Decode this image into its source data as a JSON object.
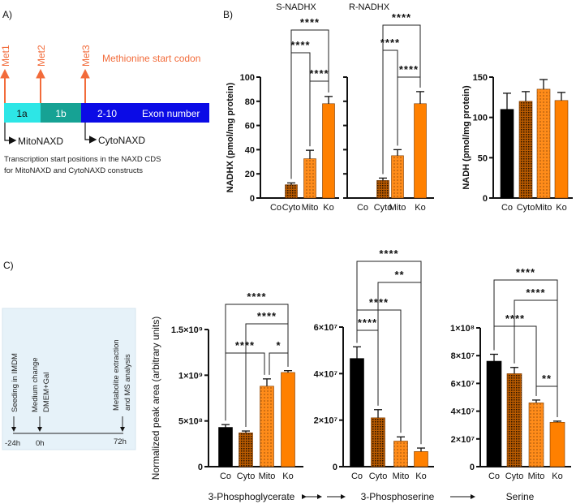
{
  "panel_a": {
    "label": "A)",
    "met_labels": [
      "Met1",
      "Met2",
      "Met3"
    ],
    "legend": "Methionine start codon",
    "exons": [
      "1a",
      "1b",
      "2-10"
    ],
    "exon_caption": "Exon number",
    "starts": [
      "MitoNAXD",
      "CytoNAXD"
    ],
    "caption_line1": "Transcription start positions in the NAXD CDS",
    "caption_line2": "for MitoNAXD and CytoNAXD constructs",
    "colors": {
      "met": "#f26b3a",
      "exon_1a": "#2de6e6",
      "exon_1b": "#16a294",
      "exon_2_10": "#0b0be6"
    }
  },
  "panel_b": {
    "label": "B)"
  },
  "panel_c": {
    "label": "C)",
    "timeline": {
      "events": [
        "Seeding in IMDM",
        "Medium change",
        "DMEM+Gal",
        "Metabolite extraction",
        "and MS analysis"
      ],
      "times": [
        "-24h",
        "0h",
        "72h"
      ]
    },
    "pathway": [
      "3-Phosphoglycerate",
      "3-Phosphoserine",
      "Serine"
    ]
  },
  "colors": {
    "co": "#000000",
    "cyto": "#b85a00",
    "mito": "#ff8c1a",
    "ko": "#ff8000"
  },
  "chart_data": [
    {
      "id": "s_nadhx",
      "type": "bar",
      "title": "S-NADHX",
      "ylabel": "NADHX (pmol/mg protein)",
      "ylim": [
        0,
        100
      ],
      "yticks": [
        0,
        20,
        40,
        60,
        80,
        100
      ],
      "ytick_labels": [
        "0",
        "20",
        "40",
        "60",
        "80",
        "100"
      ],
      "categories": [
        "Co",
        "Cyto",
        "Mito",
        "Ko"
      ],
      "values": [
        0,
        11,
        32.5,
        78
      ],
      "errors": [
        0,
        1.5,
        7,
        6
      ],
      "significance": [
        {
          "pair": [
            1,
            3
          ],
          "label": "****"
        },
        {
          "pair": [
            1,
            2
          ],
          "label": "****"
        },
        {
          "pair": [
            2,
            3
          ],
          "label": "****"
        }
      ]
    },
    {
      "id": "r_nadhx",
      "type": "bar",
      "title": "R-NADHX",
      "ylabel": "",
      "ylim": [
        0,
        100
      ],
      "yticks": [
        0,
        20,
        40,
        60,
        80,
        100
      ],
      "ytick_labels": [],
      "categories": [
        "Co",
        "Cyto",
        "Mito",
        "Ko"
      ],
      "values": [
        0,
        14.5,
        35,
        78
      ],
      "errors": [
        0,
        2,
        5,
        10
      ],
      "significance": [
        {
          "pair": [
            1,
            3
          ],
          "label": "****"
        },
        {
          "pair": [
            1,
            2
          ],
          "label": "****"
        },
        {
          "pair": [
            2,
            3
          ],
          "label": "****"
        }
      ]
    },
    {
      "id": "nadh",
      "type": "bar",
      "title": "",
      "ylabel": "NADH (pmol/mg protein)",
      "ylim": [
        0,
        150
      ],
      "yticks": [
        0,
        50,
        100,
        150
      ],
      "ytick_labels": [
        "0",
        "50",
        "100",
        "150"
      ],
      "categories": [
        "Co",
        "Cyto",
        "Mito",
        "Ko"
      ],
      "values": [
        110,
        120,
        135,
        121
      ],
      "errors": [
        20,
        12,
        12,
        10
      ],
      "significance": []
    },
    {
      "id": "pg",
      "type": "bar",
      "title": "",
      "ylabel": "Normalized peak area (arbitrary units)",
      "ylim": [
        0,
        1500000000
      ],
      "yticks": [
        0,
        500000000,
        1000000000,
        1500000000
      ],
      "ytick_labels": [
        "0",
        "5×10⁸",
        "1×10⁹",
        "1.5×10⁹"
      ],
      "categories": [
        "Co",
        "Cyto",
        "Mito",
        "Ko"
      ],
      "values": [
        430000000,
        370000000,
        880000000,
        1030000000
      ],
      "errors": [
        30000000,
        20000000,
        80000000,
        20000000
      ],
      "significance": [
        {
          "pair": [
            0,
            3
          ],
          "label": "****"
        },
        {
          "pair": [
            1,
            3
          ],
          "label": "****"
        },
        {
          "pair": [
            0,
            2
          ],
          "label": "****"
        },
        {
          "pair": [
            2,
            3
          ],
          "label": "*"
        }
      ]
    },
    {
      "id": "ps",
      "type": "bar",
      "title": "",
      "ylabel": "",
      "ylim": [
        0,
        60000000
      ],
      "yticks": [
        0,
        20000000,
        40000000,
        60000000
      ],
      "ytick_labels": [
        "0",
        "2×10⁷",
        "4×10⁷",
        "6×10⁷"
      ],
      "categories": [
        "Co",
        "Cyto",
        "Mito",
        "Ko"
      ],
      "values": [
        46500000,
        21000000,
        11000000,
        6500000
      ],
      "errors": [
        5000000,
        3500000,
        1800000,
        1500000
      ],
      "significance": [
        {
          "pair": [
            0,
            3
          ],
          "label": "****"
        },
        {
          "pair": [
            1,
            3
          ],
          "label": "**"
        },
        {
          "pair": [
            0,
            2
          ],
          "label": "****"
        },
        {
          "pair": [
            0,
            1
          ],
          "label": "****"
        }
      ]
    },
    {
      "id": "ser",
      "type": "bar",
      "title": "",
      "ylabel": "",
      "ylim": [
        0,
        100000000
      ],
      "yticks": [
        0,
        20000000,
        40000000,
        60000000,
        80000000,
        100000000
      ],
      "ytick_labels": [
        "0",
        "2×10⁷",
        "4×10⁷",
        "6×10⁷",
        "8×10⁷",
        "1×10⁸"
      ],
      "categories": [
        "Co",
        "Cyto",
        "Mito",
        "Ko"
      ],
      "values": [
        76000000,
        67000000,
        46000000,
        32000000
      ],
      "errors": [
        5000000,
        4500000,
        2000000,
        800000
      ],
      "significance": [
        {
          "pair": [
            0,
            3
          ],
          "label": "****"
        },
        {
          "pair": [
            1,
            3
          ],
          "label": "****"
        },
        {
          "pair": [
            0,
            2
          ],
          "label": "****"
        },
        {
          "pair": [
            2,
            3
          ],
          "label": "**"
        }
      ]
    }
  ]
}
